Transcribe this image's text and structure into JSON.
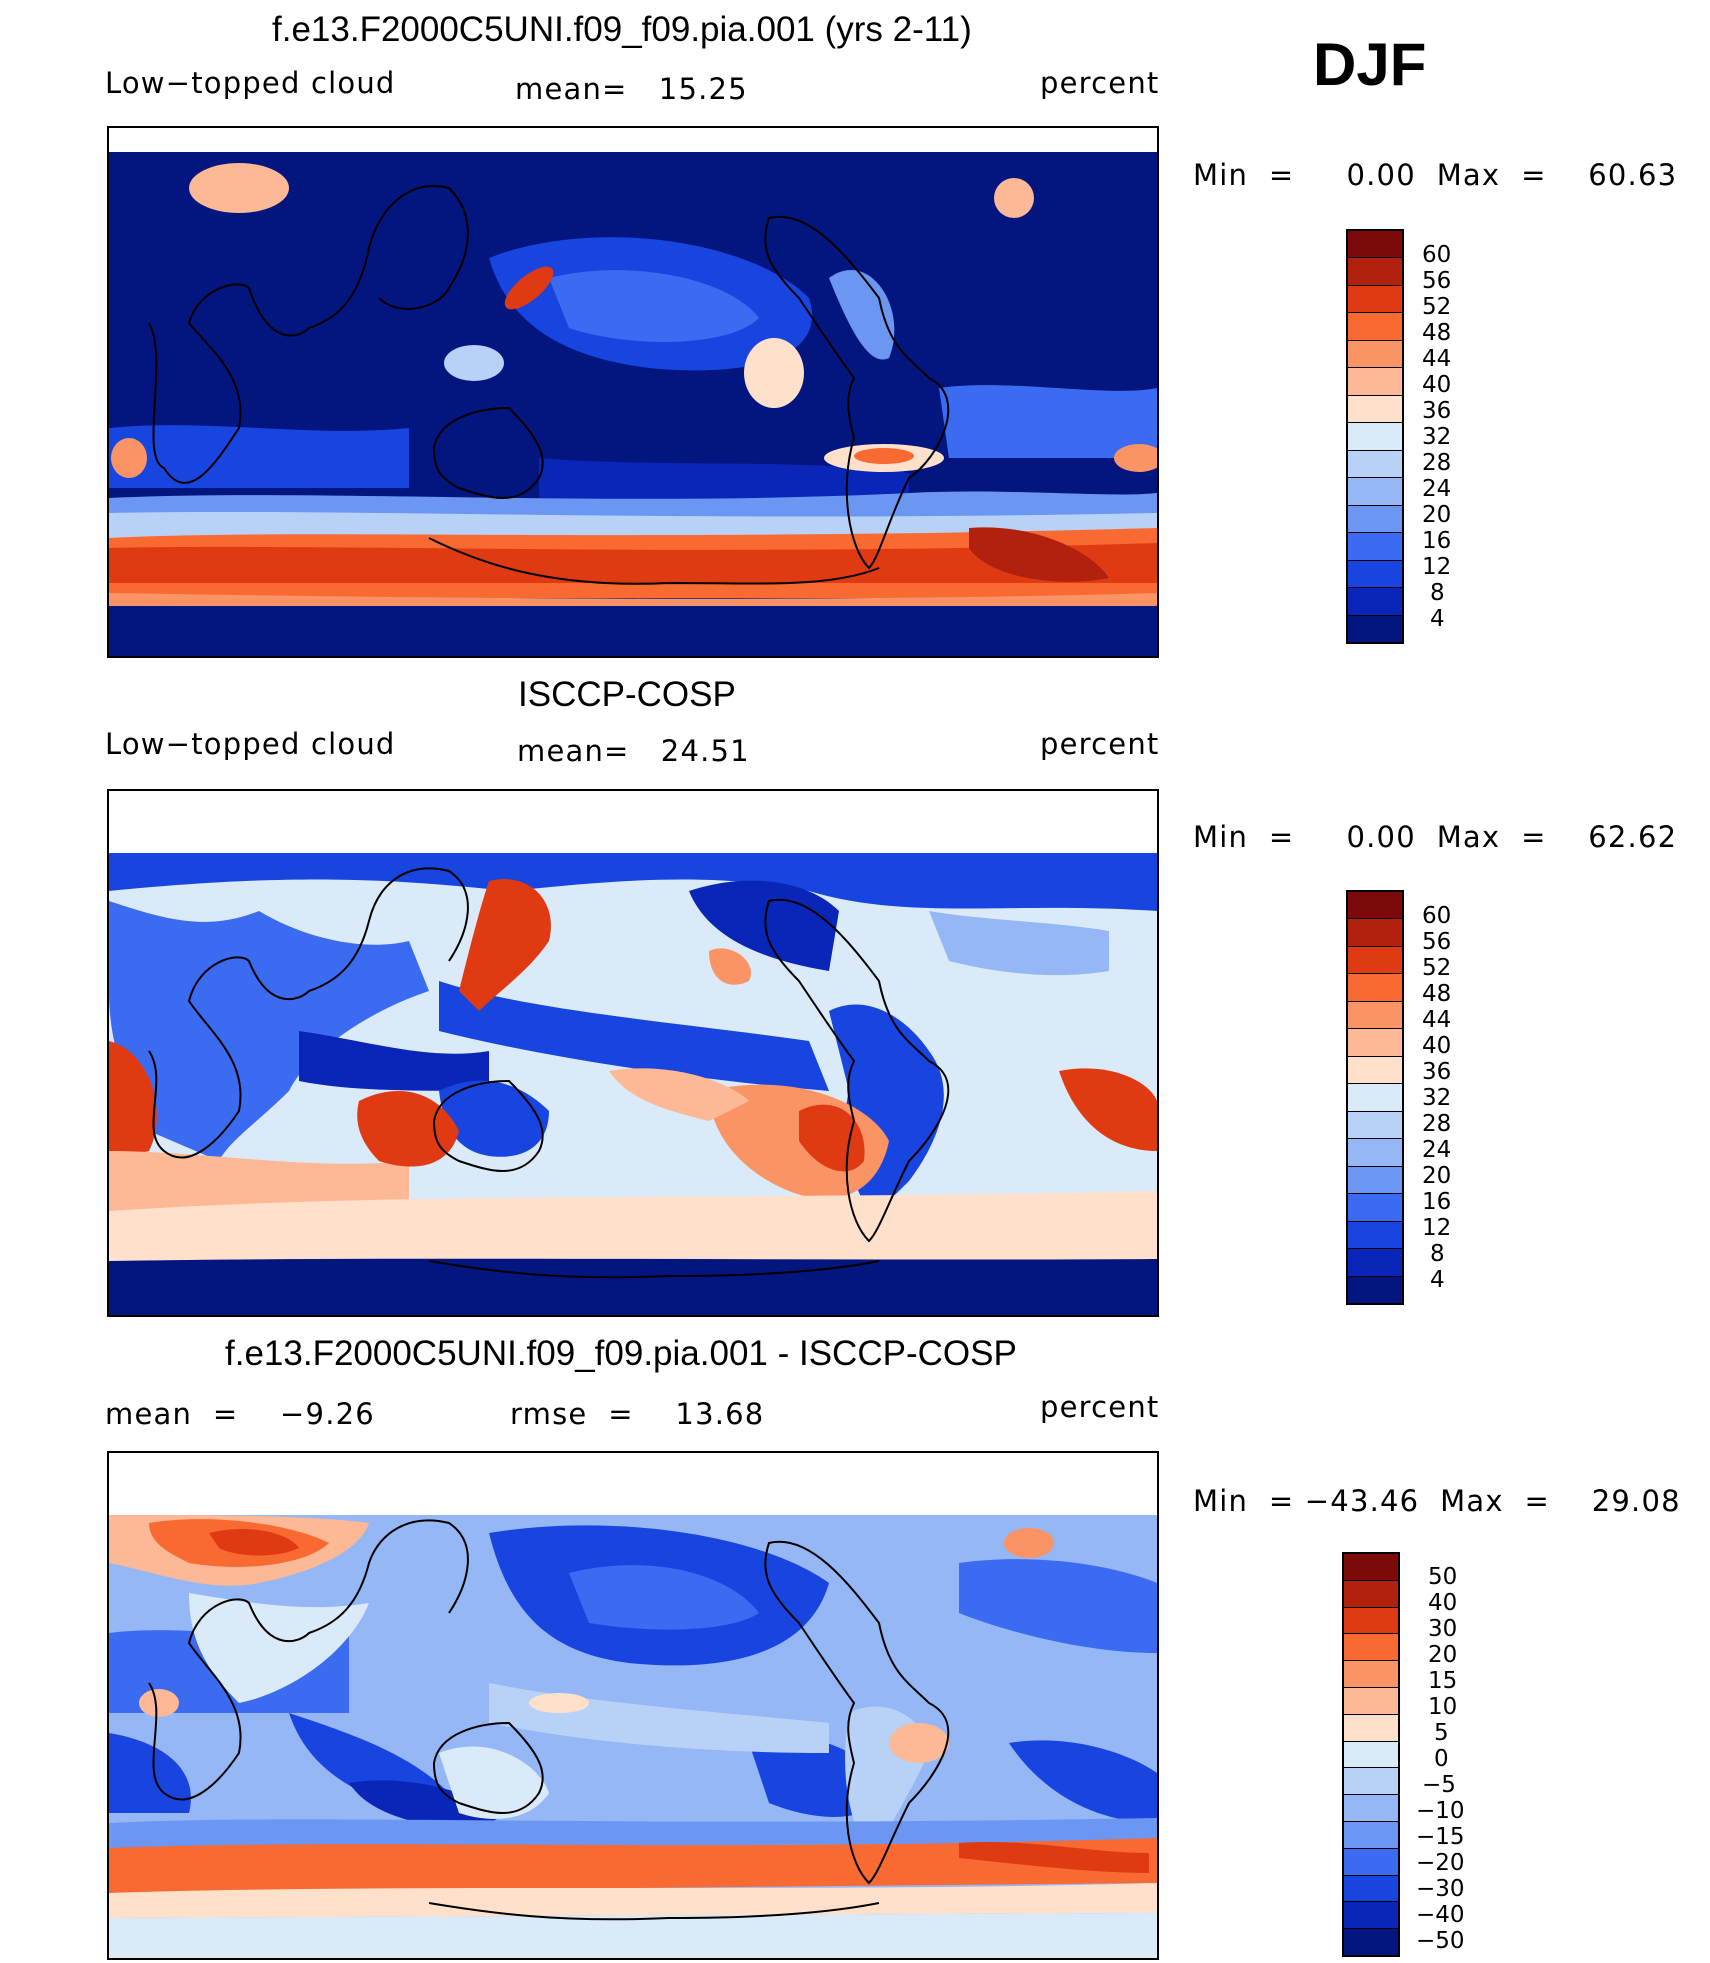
{
  "season": "DJF",
  "panels": [
    {
      "title": "f.e13.F2000C5UNI.f09_f09.pia.001 (yrs 2-11)",
      "left_label": "Low−topped cloud",
      "center_label": "mean=   15.25",
      "right_label": "percent",
      "minmax": "Min  =     0.00  Max  =    60.63",
      "levels": [
        "60",
        "56",
        "52",
        "48",
        "44",
        "40",
        "36",
        "32",
        "28",
        "24",
        "20",
        "16",
        "12",
        "8",
        "4"
      ]
    },
    {
      "title": "ISCCP-COSP",
      "left_label": "Low−topped cloud",
      "center_label": "mean=   24.51",
      "right_label": "percent",
      "minmax": "Min  =     0.00  Max  =    62.62",
      "levels": [
        "60",
        "56",
        "52",
        "48",
        "44",
        "40",
        "36",
        "32",
        "28",
        "24",
        "20",
        "16",
        "12",
        "8",
        "4"
      ]
    },
    {
      "title": "f.e13.F2000C5UNI.f09_f09.pia.001 - ISCCP-COSP",
      "left_label": "mean  =    −9.26",
      "center_label": "rmse  =    13.68",
      "right_label": "percent",
      "minmax": "Min  = −43.46  Max  =    29.08",
      "levels": [
        "50",
        "40",
        "30",
        "20",
        "15",
        "10",
        "5",
        "0",
        "−5",
        "−10",
        "−15",
        "−20",
        "−30",
        "−40",
        "−50"
      ]
    }
  ],
  "colors": {
    "scale": [
      "#7d0a0a",
      "#b2200e",
      "#e03a12",
      "#f86a32",
      "#fb9465",
      "#fdb895",
      "#fee0cb",
      "#dbeaf9",
      "#b8d2f7",
      "#95b7f6",
      "#6b96f2",
      "#3b6bf0",
      "#1845e0",
      "#0a26b8",
      "#031680"
    ],
    "coast": "#000000",
    "missing": "#ffffff"
  }
}
